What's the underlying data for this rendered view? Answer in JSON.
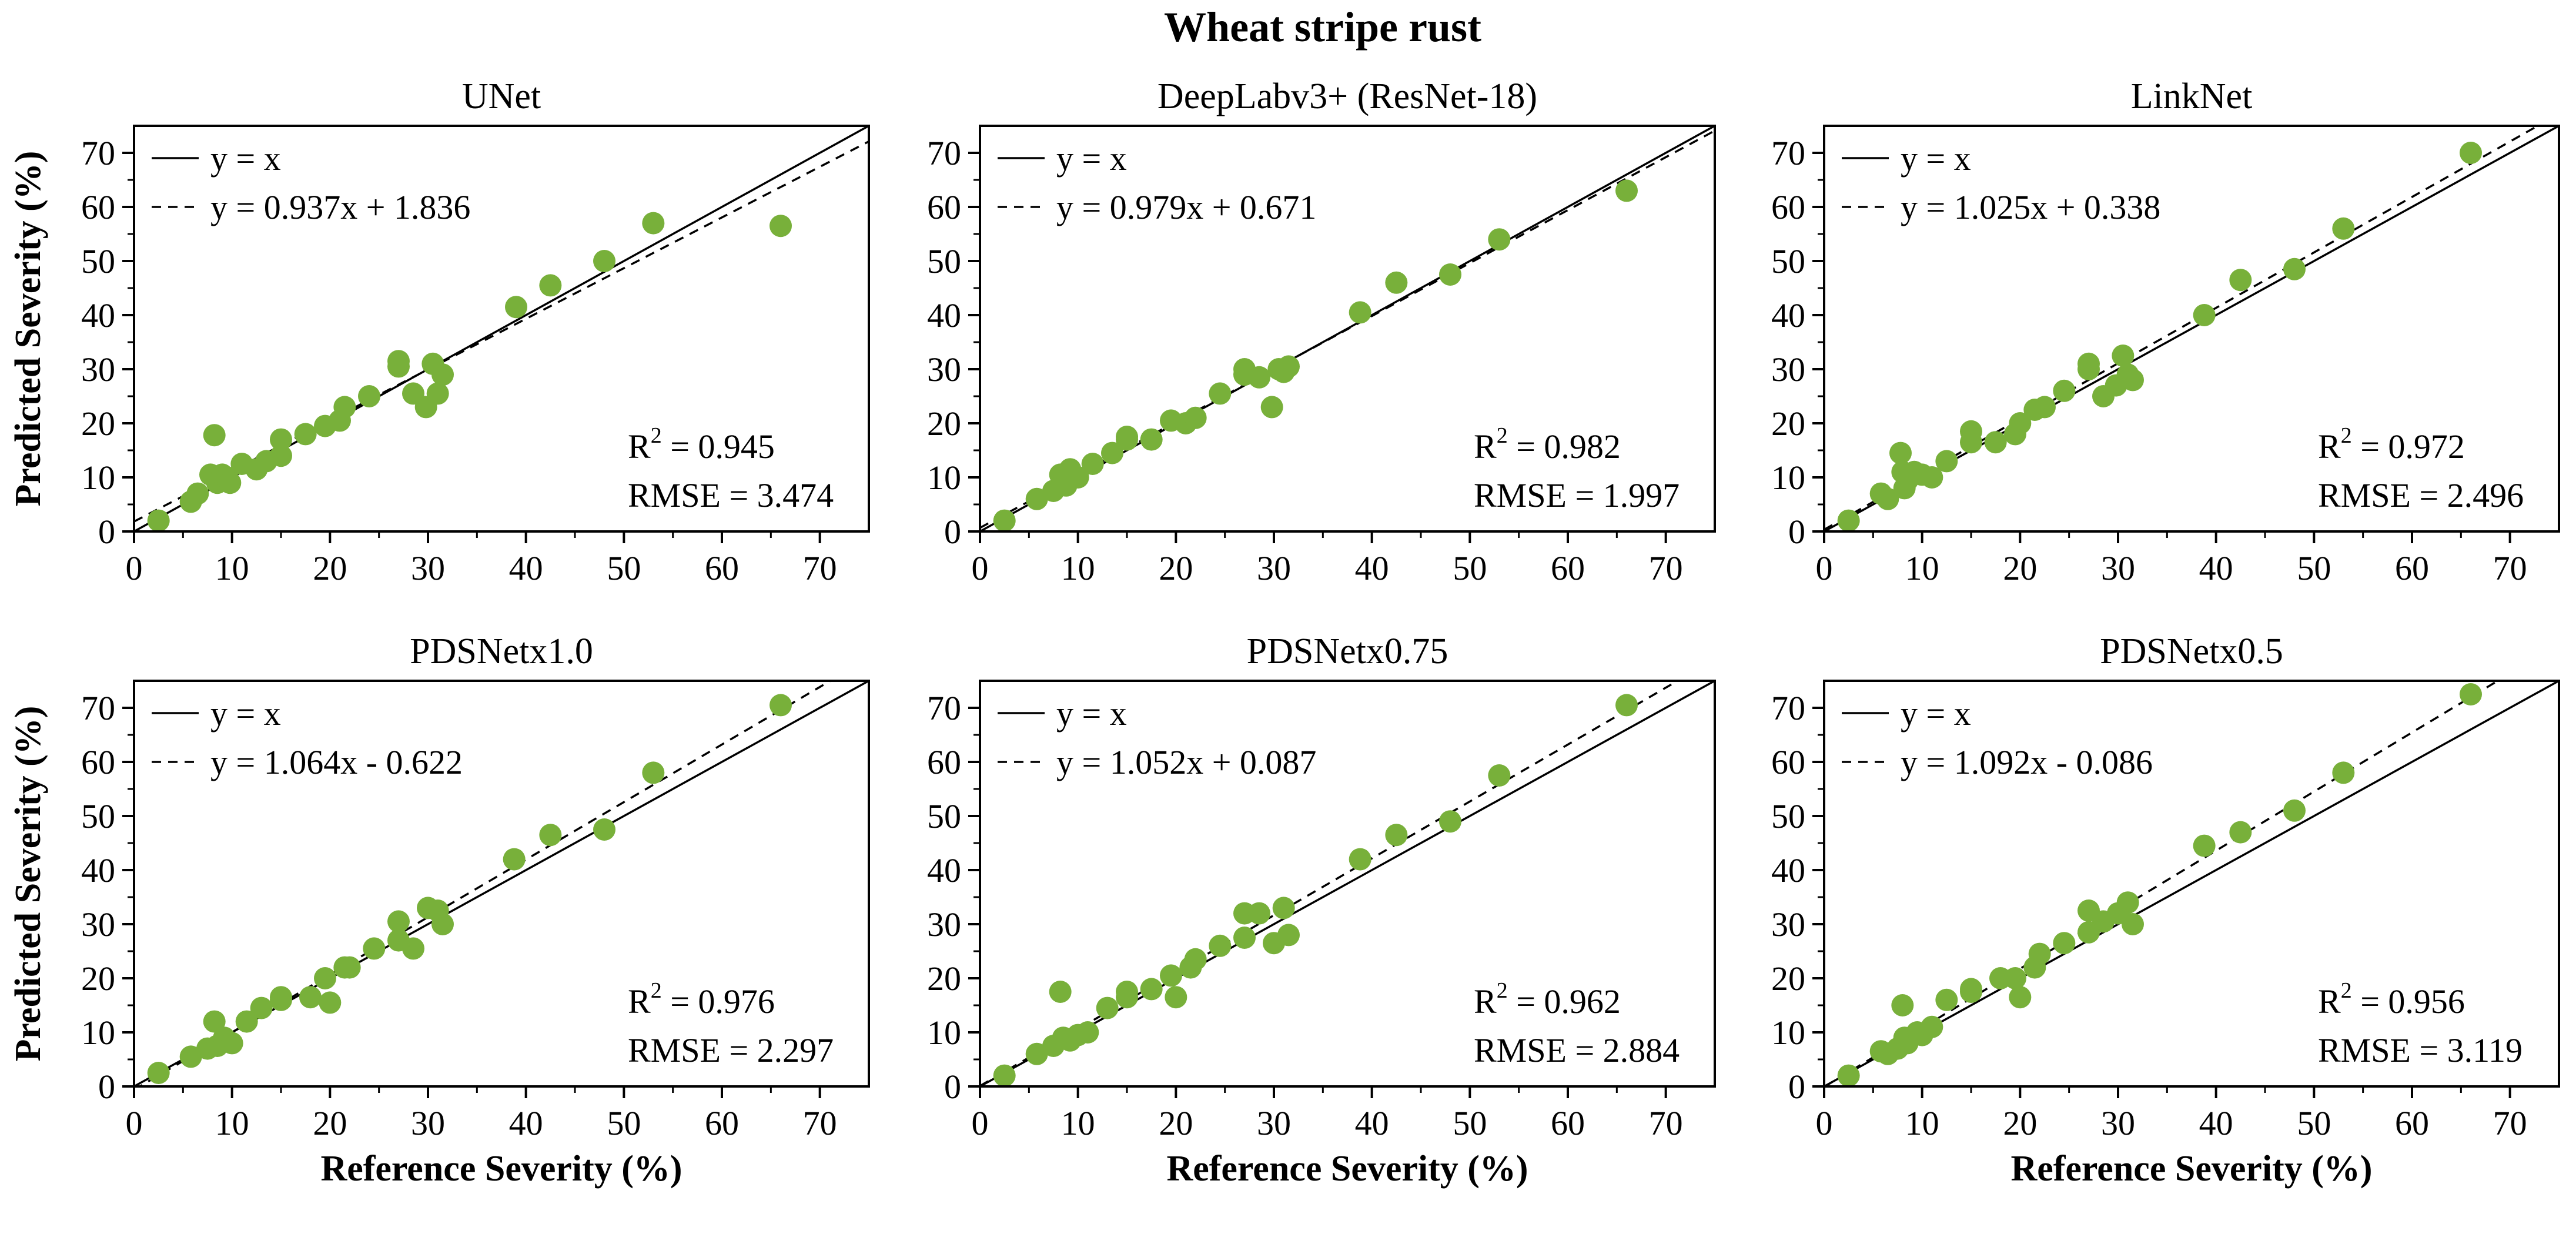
{
  "figure": {
    "title": "Wheat stripe rust",
    "xlabel": "Reference Severity (%)",
    "ylabel": "Predicted Severity (%)"
  },
  "colors": {
    "points": "#78b03a",
    "lines": "#000000"
  },
  "chart_data": [
    {
      "type": "scatter",
      "title": "UNet",
      "xlabel": "Reference Severity (%)",
      "ylabel": "Predicted Severity (%)",
      "xlim": [
        0,
        75
      ],
      "ylim": [
        0,
        75
      ],
      "xticks": [
        0,
        10,
        20,
        30,
        40,
        50,
        60,
        70
      ],
      "yticks": [
        0,
        10,
        20,
        30,
        40,
        50,
        60,
        70
      ],
      "legend": [
        "y = x",
        "y = 0.937x + 1.836"
      ],
      "fit": {
        "slope": 0.937,
        "intercept": 1.836
      },
      "r2_label": "R",
      "r2_sup": "2",
      "r2_value": " = 0.945",
      "rmse_label": "RMSE = 3.474",
      "x": [
        2.5,
        5.8,
        6.5,
        7.8,
        8.2,
        8.5,
        9.0,
        9.5,
        9.8,
        11.0,
        12.5,
        13.5,
        15.0,
        15.0,
        17.5,
        19.5,
        21.0,
        21.5,
        24.0,
        27.0,
        27.0,
        28.5,
        29.8,
        30.5,
        31.0,
        31.5,
        39.0,
        42.5,
        48.0,
        53.0,
        66.0
      ],
      "y": [
        2.0,
        5.5,
        7.0,
        10.5,
        17.8,
        9.0,
        10.5,
        10.0,
        9.0,
        12.5,
        11.5,
        13.0,
        17.0,
        14.0,
        18.0,
        19.5,
        20.5,
        23.0,
        25.0,
        31.5,
        30.5,
        25.5,
        23.0,
        31.0,
        25.5,
        29.0,
        41.5,
        45.5,
        50.0,
        57.0,
        56.5
      ]
    },
    {
      "type": "scatter",
      "title": "DeepLabv3+ (ResNet-18)",
      "xlabel": "Reference Severity (%)",
      "ylabel": "Predicted Severity (%)",
      "xlim": [
        0,
        75
      ],
      "ylim": [
        0,
        75
      ],
      "xticks": [
        0,
        10,
        20,
        30,
        40,
        50,
        60,
        70
      ],
      "yticks": [
        0,
        10,
        20,
        30,
        40,
        50,
        60,
        70
      ],
      "legend": [
        "y = x",
        "y = 0.979x + 0.671"
      ],
      "fit": {
        "slope": 0.979,
        "intercept": 0.671
      },
      "r2_label": "R",
      "r2_sup": "2",
      "r2_value": " = 0.982",
      "rmse_label": "RMSE = 1.997",
      "x": [
        2.5,
        5.8,
        7.5,
        8.2,
        8.8,
        9.2,
        10.0,
        11.5,
        13.5,
        15.0,
        15.0,
        17.5,
        19.5,
        21.0,
        22.0,
        24.5,
        27.0,
        27.0,
        28.5,
        29.8,
        30.5,
        31.0,
        31.5,
        38.8,
        42.5,
        48.0,
        53.0,
        66.0
      ],
      "y": [
        2.0,
        6.0,
        7.5,
        10.5,
        8.5,
        11.5,
        10.0,
        12.5,
        14.5,
        17.0,
        17.5,
        17.0,
        20.5,
        20.0,
        21.0,
        25.5,
        30.0,
        29.0,
        28.5,
        23.0,
        30.0,
        29.5,
        30.5,
        40.5,
        46.0,
        47.5,
        54.0,
        63.0
      ]
    },
    {
      "type": "scatter",
      "title": "LinkNet",
      "xlabel": "Reference Severity (%)",
      "ylabel": "Predicted Severity (%)",
      "xlim": [
        0,
        75
      ],
      "ylim": [
        0,
        75
      ],
      "xticks": [
        0,
        10,
        20,
        30,
        40,
        50,
        60,
        70
      ],
      "yticks": [
        0,
        10,
        20,
        30,
        40,
        50,
        60,
        70
      ],
      "legend": [
        "y = x",
        "y = 1.025x + 0.338"
      ],
      "fit": {
        "slope": 1.025,
        "intercept": 0.338
      },
      "r2_label": "R",
      "r2_sup": "2",
      "r2_value": " = 0.972",
      "rmse_label": "RMSE = 2.496",
      "x": [
        2.5,
        5.8,
        6.5,
        7.8,
        8.0,
        8.2,
        8.5,
        9.2,
        10.0,
        11.0,
        12.5,
        15.0,
        15.0,
        17.5,
        19.5,
        20.0,
        21.5,
        22.5,
        24.5,
        27.0,
        27.0,
        28.5,
        29.8,
        30.5,
        31.0,
        31.5,
        38.8,
        42.5,
        48.0,
        53.0,
        66.0
      ],
      "y": [
        2.0,
        7.0,
        6.0,
        14.5,
        11.0,
        8.0,
        9.5,
        11.0,
        10.5,
        10.0,
        13.0,
        18.5,
        16.5,
        16.5,
        18.0,
        20.0,
        22.5,
        23.0,
        26.0,
        31.0,
        30.0,
        25.0,
        27.0,
        32.5,
        29.0,
        28.0,
        40.0,
        46.5,
        48.5,
        56.0,
        70.0
      ]
    },
    {
      "type": "scatter",
      "title": "PDSNetx1.0",
      "xlabel": "Reference Severity (%)",
      "ylabel": "Predicted Severity (%)",
      "xlim": [
        0,
        75
      ],
      "ylim": [
        0,
        75
      ],
      "xticks": [
        0,
        10,
        20,
        30,
        40,
        50,
        60,
        70
      ],
      "yticks": [
        0,
        10,
        20,
        30,
        40,
        50,
        60,
        70
      ],
      "legend": [
        "y = x",
        "y = 1.064x - 0.622"
      ],
      "fit": {
        "slope": 1.064,
        "intercept": -0.622
      },
      "r2_label": "R",
      "r2_sup": "2",
      "r2_value": " = 0.976",
      "rmse_label": "RMSE = 2.297",
      "x": [
        2.5,
        5.8,
        7.5,
        8.2,
        8.5,
        9.2,
        10.0,
        11.5,
        13.0,
        15.0,
        15.0,
        18.0,
        19.5,
        20.0,
        21.5,
        22.0,
        24.5,
        27.0,
        27.0,
        28.5,
        30.0,
        31.0,
        31.5,
        38.8,
        42.5,
        48.0,
        53.0,
        66.0
      ],
      "y": [
        2.5,
        5.5,
        7.0,
        12.0,
        7.5,
        9.0,
        8.0,
        12.0,
        14.5,
        16.0,
        16.5,
        16.5,
        20.0,
        15.5,
        22.0,
        22.0,
        25.5,
        30.5,
        27.0,
        25.5,
        33.0,
        32.5,
        30.0,
        42.0,
        46.5,
        47.5,
        58.0,
        70.5
      ]
    },
    {
      "type": "scatter",
      "title": "PDSNetx0.75",
      "xlabel": "Reference Severity (%)",
      "ylabel": "Predicted Severity (%)",
      "xlim": [
        0,
        75
      ],
      "ylim": [
        0,
        75
      ],
      "xticks": [
        0,
        10,
        20,
        30,
        40,
        50,
        60,
        70
      ],
      "yticks": [
        0,
        10,
        20,
        30,
        40,
        50,
        60,
        70
      ],
      "legend": [
        "y = x",
        "y = 1.052x + 0.087"
      ],
      "fit": {
        "slope": 1.052,
        "intercept": 0.087
      },
      "r2_label": "R",
      "r2_sup": "2",
      "r2_value": " = 0.962",
      "rmse_label": "RMSE = 2.884",
      "x": [
        2.5,
        5.8,
        7.5,
        8.2,
        8.5,
        9.2,
        10.0,
        11.0,
        13.0,
        15.0,
        15.0,
        17.5,
        19.5,
        20.0,
        21.5,
        22.0,
        24.5,
        27.0,
        27.0,
        28.5,
        30.0,
        31.0,
        31.5,
        38.8,
        42.5,
        48.0,
        53.0,
        66.0
      ],
      "y": [
        2.0,
        6.0,
        7.5,
        17.5,
        9.0,
        8.5,
        9.5,
        10.0,
        14.5,
        16.5,
        17.5,
        18.0,
        20.5,
        16.5,
        22.0,
        23.5,
        26.0,
        32.0,
        27.5,
        32.0,
        26.5,
        33.0,
        28.0,
        42.0,
        46.5,
        49.0,
        57.5,
        70.5
      ]
    },
    {
      "type": "scatter",
      "title": "PDSNetx0.5",
      "xlabel": "Reference Severity (%)",
      "ylabel": "Predicted Severity (%)",
      "xlim": [
        0,
        75
      ],
      "ylim": [
        0,
        75
      ],
      "xticks": [
        0,
        10,
        20,
        30,
        40,
        50,
        60,
        70
      ],
      "yticks": [
        0,
        10,
        20,
        30,
        40,
        50,
        60,
        70
      ],
      "legend": [
        "y = x",
        "y = 1.092x - 0.086"
      ],
      "fit": {
        "slope": 1.092,
        "intercept": -0.086
      },
      "r2_label": "R",
      "r2_sup": "2",
      "r2_value": " = 0.956",
      "rmse_label": "RMSE = 3.119",
      "x": [
        2.5,
        5.8,
        6.5,
        7.5,
        8.0,
        8.2,
        8.5,
        9.5,
        10.0,
        11.0,
        12.5,
        15.0,
        15.0,
        18.0,
        19.5,
        20.0,
        21.5,
        22.0,
        24.5,
        27.0,
        27.0,
        28.5,
        30.0,
        31.0,
        31.5,
        38.8,
        42.5,
        48.0,
        53.0,
        66.0
      ],
      "y": [
        2.0,
        6.5,
        6.0,
        7.0,
        15.0,
        9.0,
        8.0,
        10.0,
        9.5,
        11.0,
        16.0,
        17.5,
        18.0,
        20.0,
        20.0,
        16.5,
        22.0,
        24.5,
        26.5,
        32.5,
        28.5,
        30.5,
        32.0,
        34.0,
        30.0,
        44.5,
        47.0,
        51.0,
        58.0,
        72.5
      ]
    }
  ]
}
